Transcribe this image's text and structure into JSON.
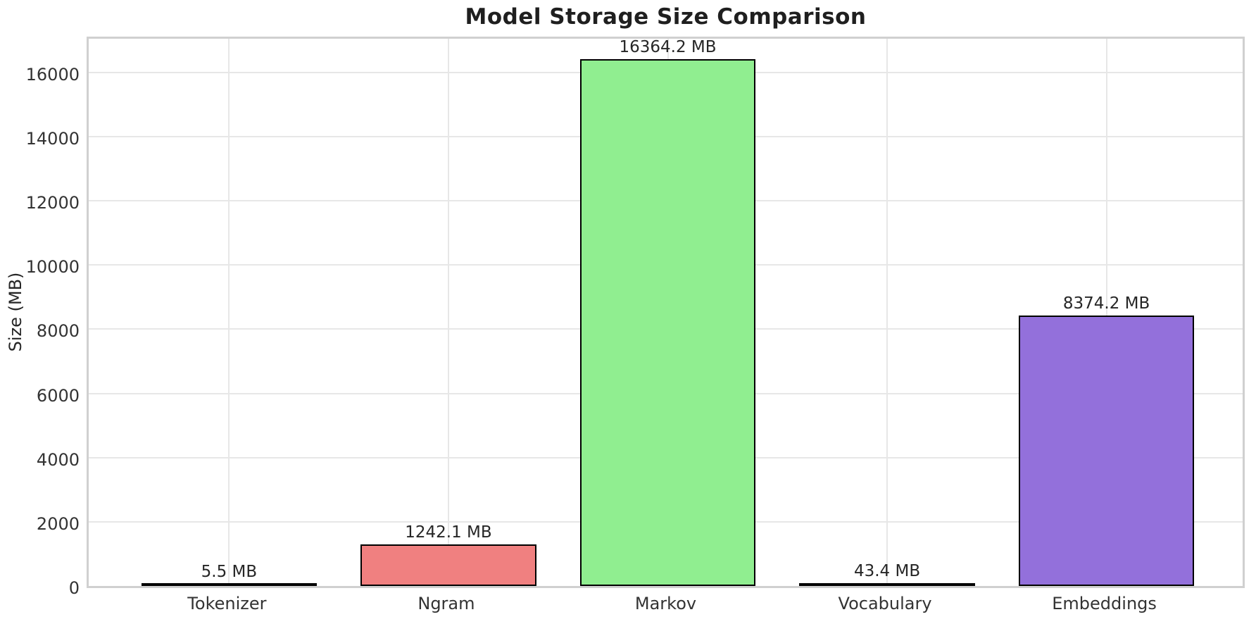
{
  "title": "Model Storage Size Comparison",
  "chart_data": {
    "type": "bar",
    "title": "Model Storage Size Comparison",
    "categories": [
      "Tokenizer",
      "Ngram",
      "Markov",
      "Vocabulary",
      "Embeddings"
    ],
    "values": [
      5.5,
      1242.1,
      16364.2,
      43.4,
      8374.2
    ],
    "value_labels": [
      "5.5 MB",
      "1242.1 MB",
      "16364.2 MB",
      "43.4 MB",
      "8374.2 MB"
    ],
    "unit": "MB",
    "xlabel": "",
    "ylabel": "Size (MB)",
    "ylim": [
      0,
      17182
    ],
    "yticks": [
      0,
      2000,
      4000,
      6000,
      8000,
      10000,
      12000,
      14000,
      16000
    ],
    "grid": true,
    "legend_position": "none",
    "bar_colors": [
      "#87ceeb",
      "#f08080",
      "#90ee90",
      "#ffd700",
      "#9370db"
    ],
    "bar_edge_color": "#000000",
    "grid_color": "#e7e7e7",
    "spine_color": "#d0d0d0",
    "text_color": "#262626",
    "background_color": "#ffffff"
  }
}
